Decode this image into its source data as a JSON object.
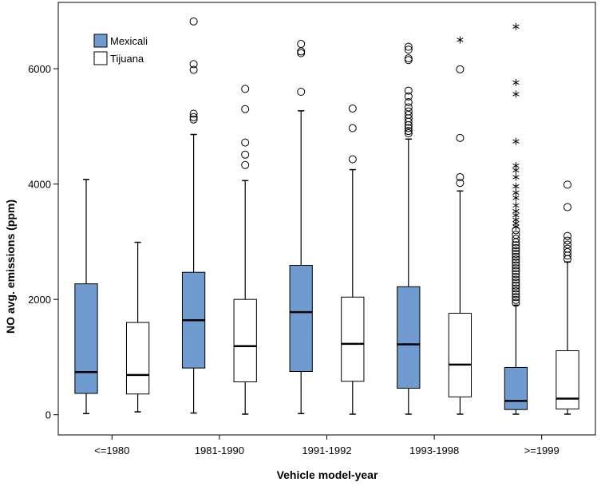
{
  "chart_data": {
    "type": "boxplot",
    "title": "",
    "xlabel": "Vehicle model-year",
    "ylabel": "NO avg. emissions (ppm)",
    "ylim": [
      -350,
      7150
    ],
    "yticks": [
      0,
      2000,
      4000,
      6000
    ],
    "categories": [
      "<=1980",
      "1981-1990",
      "1991-1992",
      "1993-1998",
      ">=1999"
    ],
    "legend_position": "top-left",
    "series": [
      {
        "name": "Mexicali",
        "color": "#6f9bd1",
        "boxes": [
          {
            "min": 20,
            "q1": 370,
            "median": 740,
            "q3": 2270,
            "max": 4080,
            "outliers": [],
            "extremes": []
          },
          {
            "min": 30,
            "q1": 810,
            "median": 1640,
            "q3": 2470,
            "max": 4860,
            "outliers": [
              5120,
              5160,
              5220,
              5980,
              6080,
              6820
            ],
            "extremes": []
          },
          {
            "min": 20,
            "q1": 750,
            "median": 1780,
            "q3": 2590,
            "max": 5270,
            "outliers": [
              5600,
              6270,
              6300,
              6430
            ],
            "extremes": []
          },
          {
            "min": 10,
            "q1": 460,
            "median": 1220,
            "q3": 2220,
            "max": 4780,
            "outliers": [
              4880,
              4920,
              4970,
              5020,
              5080,
              5140,
              5200,
              5260,
              5330,
              5420,
              5520,
              5620,
              6150,
              6180,
              6330,
              6380
            ],
            "extremes": []
          },
          {
            "min": 10,
            "q1": 90,
            "median": 240,
            "q3": 820,
            "max": 1900,
            "outliers": [
              1940,
              1990,
              2040,
              2090,
              2140,
              2190,
              2240,
              2290,
              2340,
              2390,
              2440,
              2490,
              2540,
              2590,
              2640,
              2690,
              2740,
              2790,
              2840,
              2890,
              2940,
              2990,
              3050,
              3120,
              3200
            ],
            "extremes": [
              3260,
              3320,
              3380,
              3460,
              3530,
              3630,
              3760,
              3850,
              3960,
              4120,
              4240,
              4320,
              4740,
              5560,
              5760,
              6730
            ]
          }
        ]
      },
      {
        "name": "Tijuana",
        "color": "#ffffff",
        "boxes": [
          {
            "min": 50,
            "q1": 360,
            "median": 690,
            "q3": 1600,
            "max": 2990,
            "outliers": [],
            "extremes": []
          },
          {
            "min": 10,
            "q1": 570,
            "median": 1190,
            "q3": 2000,
            "max": 4060,
            "outliers": [
              4330,
              4510,
              4720,
              5300,
              5650
            ],
            "extremes": []
          },
          {
            "min": 10,
            "q1": 580,
            "median": 1230,
            "q3": 2040,
            "max": 4250,
            "outliers": [
              4430,
              4970,
              5310
            ],
            "extremes": []
          },
          {
            "min": 10,
            "q1": 310,
            "median": 870,
            "q3": 1760,
            "max": 3880,
            "outliers": [
              4020,
              4120,
              4800,
              5990
            ],
            "extremes": [
              6500
            ]
          },
          {
            "min": 10,
            "q1": 100,
            "median": 280,
            "q3": 1110,
            "max": 2650,
            "outliers": [
              2700,
              2760,
              2820,
              2880,
              2950,
              3020,
              3100,
              3600,
              3990
            ],
            "extremes": []
          }
        ]
      }
    ]
  }
}
